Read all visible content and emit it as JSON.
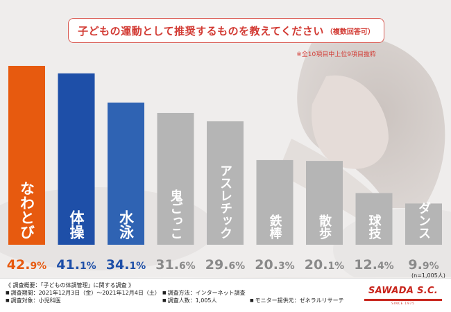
{
  "title": {
    "main": "子どもの運動として推奨するものを教えてください",
    "sub": "（複数回答可）"
  },
  "note_top": "※全10項目中上位9項目抜粋",
  "n_note": "(n=1,005人)",
  "colors": {
    "orange": "#e75a0f",
    "blue": "#1e4fa8",
    "blue_light": "#2f63b3",
    "gray": "#b5b5b5",
    "accent_red": "#d23a33",
    "bar_text": "#ffffff"
  },
  "chart_data": {
    "type": "bar",
    "title": "子どもの運動として推奨するものを教えてください（複数回答可）",
    "categories": [
      "なわとび",
      "体操",
      "水泳",
      "鬼ごっこ",
      "アスレチック",
      "鉄棒",
      "散歩",
      "球技",
      "ダンス"
    ],
    "values": [
      42.9,
      41.1,
      34.1,
      31.6,
      29.6,
      20.3,
      20.1,
      12.4,
      9.9
    ],
    "unit": "%",
    "bar_colors": [
      "orange",
      "blue",
      "blue_light",
      "gray",
      "gray",
      "gray",
      "gray",
      "gray",
      "gray"
    ],
    "ylim": [
      0,
      45
    ],
    "xlabel": "",
    "ylabel": "",
    "grid": false
  },
  "footer": {
    "overview": "《 調査概要：「子どもの体調管理」に関する調査 》",
    "period": "調査期間：2021年12月3日（金）〜2021年12月4日（土）",
    "target": "調査対象：小児科医",
    "method": "調査方法：インターネット調査",
    "count": "調査人数：1,005人",
    "provider": "モニター提供元：ゼネラルリサーチ"
  },
  "logo": {
    "name": "SAWADA S.C.",
    "since": "SINCE 1975"
  }
}
